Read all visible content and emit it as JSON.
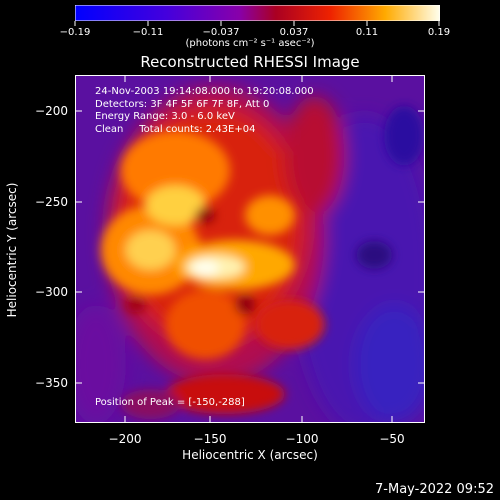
{
  "colorbar": {
    "ticks": [
      "−0.19",
      "−0.11",
      "−0.037",
      "0.037",
      "0.11",
      "0.19"
    ],
    "units": "(photons cm⁻² s⁻¹ asec⁻²)"
  },
  "title": "Reconstructed RHESSI Image",
  "annotation": {
    "line1": "24-Nov-2003 19:14:08.000 to 19:20:08.000",
    "line2": "Detectors: 3F 4F 5F 6F 7F 8F, Att 0",
    "line3": "Energy Range: 3.0 - 6.0 keV",
    "line4": "Clean     Total counts: 2.43E+04",
    "peak": "Position of Peak = [-150,-288]"
  },
  "axes": {
    "xlabel": "Heliocentric X (arcsec)",
    "ylabel": "Heliocentric Y (arcsec)",
    "xticks": [
      "−200",
      "−150",
      "−100",
      "−50"
    ],
    "yticks": [
      "−200",
      "−250",
      "−300",
      "−350"
    ]
  },
  "footer": {
    "timestamp": "7-May-2022 09:52"
  },
  "colors": {
    "background": "#000000",
    "text": "#ffffff"
  }
}
